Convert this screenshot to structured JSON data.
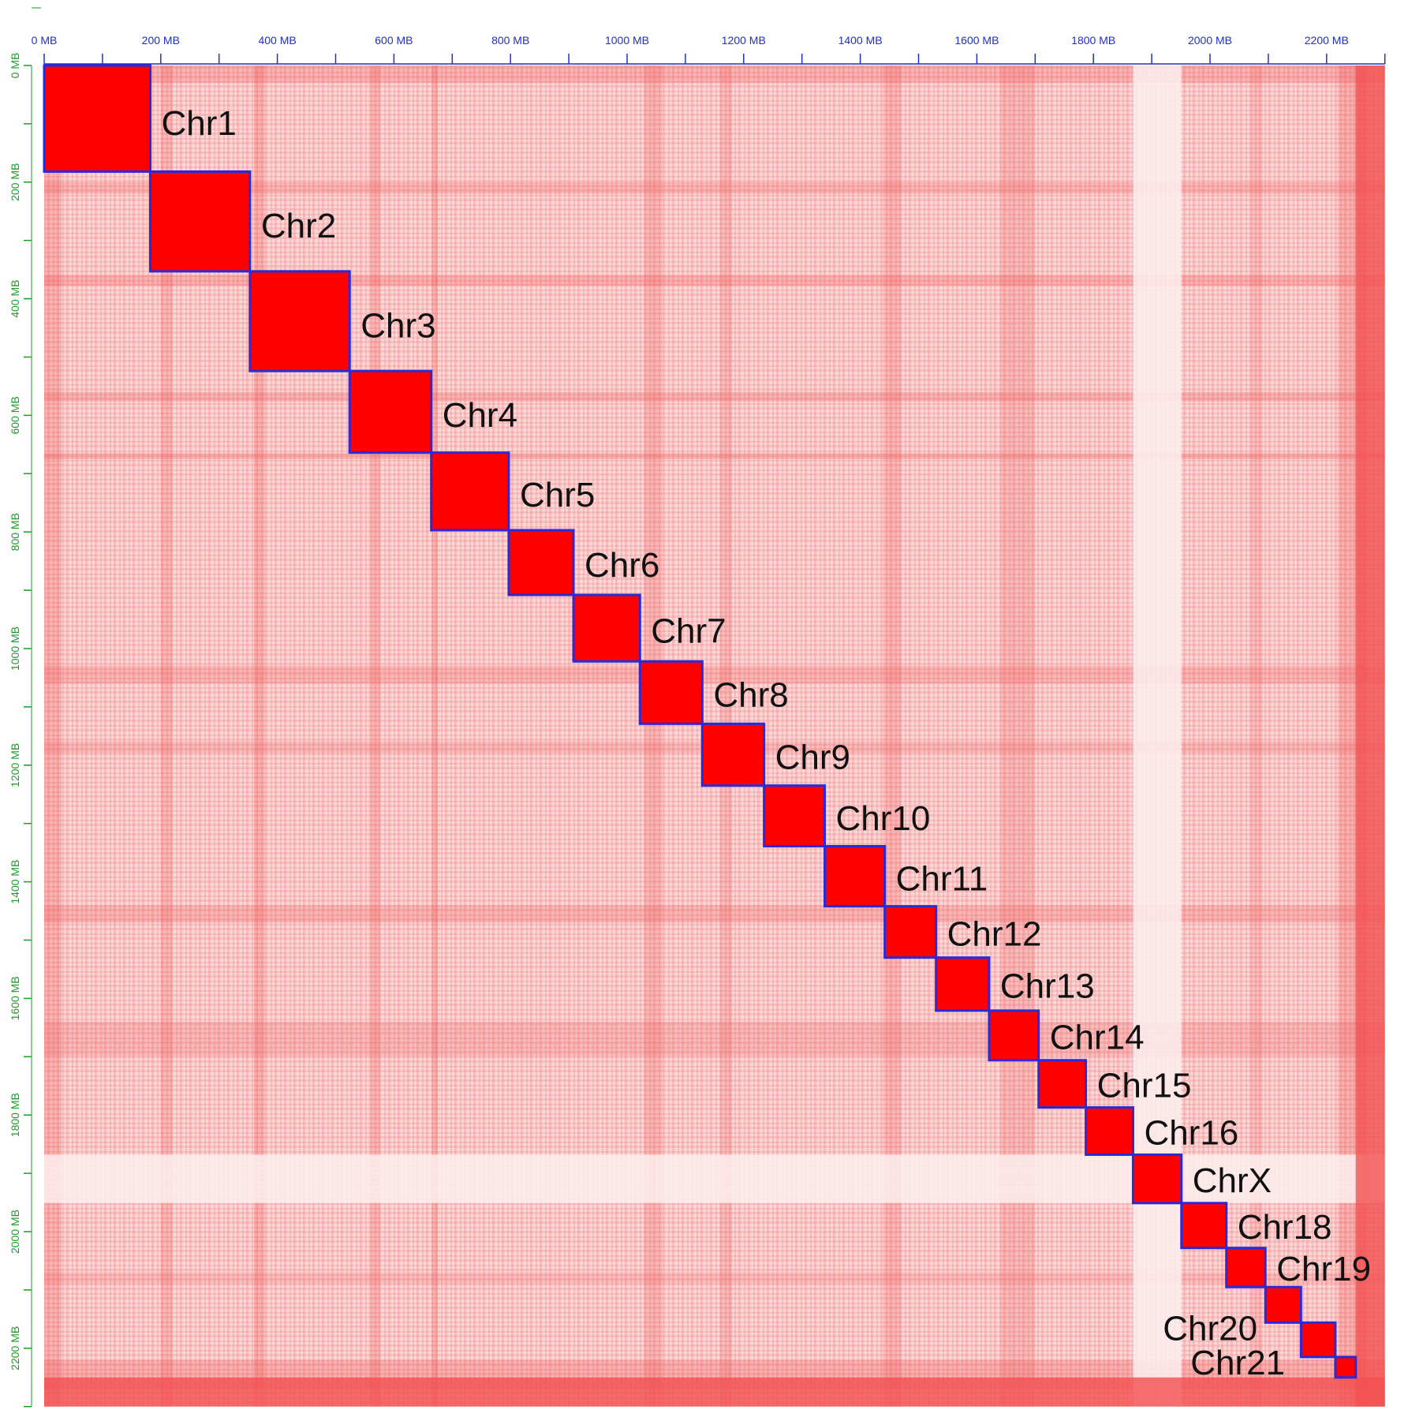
{
  "chart_data": {
    "type": "heatmap",
    "title": "",
    "xlabel": "",
    "ylabel": "",
    "unit": "MB",
    "genome_length_mb": 2300,
    "xlim": [
      0,
      2300
    ],
    "ylim": [
      0,
      2300
    ],
    "x_ticks": [
      "0 MB",
      "200 MB",
      "400 MB",
      "600 MB",
      "800 MB",
      "1000 MB",
      "1200 MB",
      "1400 MB",
      "1600 MB",
      "1800 MB",
      "2000 MB",
      "2200 MB"
    ],
    "y_ticks": [
      "0 MB",
      "200 MB",
      "400 MB",
      "600 MB",
      "800 MB",
      "1000 MB",
      "1200 MB",
      "1400 MB",
      "1600 MB",
      "1800 MB",
      "2000 MB",
      "2200 MB"
    ],
    "tick_values": [
      0,
      200,
      400,
      600,
      800,
      1000,
      1200,
      1400,
      1600,
      1800,
      2000,
      2200
    ],
    "chromosomes": [
      {
        "name": "Chr1",
        "start": 0,
        "end": 182
      },
      {
        "name": "Chr2",
        "start": 182,
        "end": 353
      },
      {
        "name": "Chr3",
        "start": 353,
        "end": 524
      },
      {
        "name": "Chr4",
        "start": 524,
        "end": 664
      },
      {
        "name": "Chr5",
        "start": 664,
        "end": 797
      },
      {
        "name": "Chr6",
        "start": 797,
        "end": 908
      },
      {
        "name": "Chr7",
        "start": 908,
        "end": 1022
      },
      {
        "name": "Chr8",
        "start": 1022,
        "end": 1129
      },
      {
        "name": "Chr9",
        "start": 1129,
        "end": 1235
      },
      {
        "name": "Chr10",
        "start": 1235,
        "end": 1339
      },
      {
        "name": "Chr11",
        "start": 1339,
        "end": 1442
      },
      {
        "name": "Chr12",
        "start": 1442,
        "end": 1530
      },
      {
        "name": "Chr13",
        "start": 1530,
        "end": 1621
      },
      {
        "name": "Chr14",
        "start": 1621,
        "end": 1706
      },
      {
        "name": "Chr15",
        "start": 1706,
        "end": 1787
      },
      {
        "name": "Chr16",
        "start": 1787,
        "end": 1868
      },
      {
        "name": "ChrX",
        "start": 1868,
        "end": 1951
      },
      {
        "name": "Chr18",
        "start": 1951,
        "end": 2028
      },
      {
        "name": "Chr19",
        "start": 2028,
        "end": 2095
      },
      {
        "name": "Chr20",
        "start": 2095,
        "end": 2156
      },
      {
        "name": "Chr21",
        "start": 2156,
        "end": 2215
      },
      {
        "name": "",
        "start": 2215,
        "end": 2250
      }
    ],
    "colors": {
      "high": "#ff0000",
      "background": "#fbd8d8",
      "box": "#2a2ad8",
      "x_tick": "#1f2fcc",
      "y_tick": "#1a9a2a",
      "label": "#111111"
    }
  }
}
